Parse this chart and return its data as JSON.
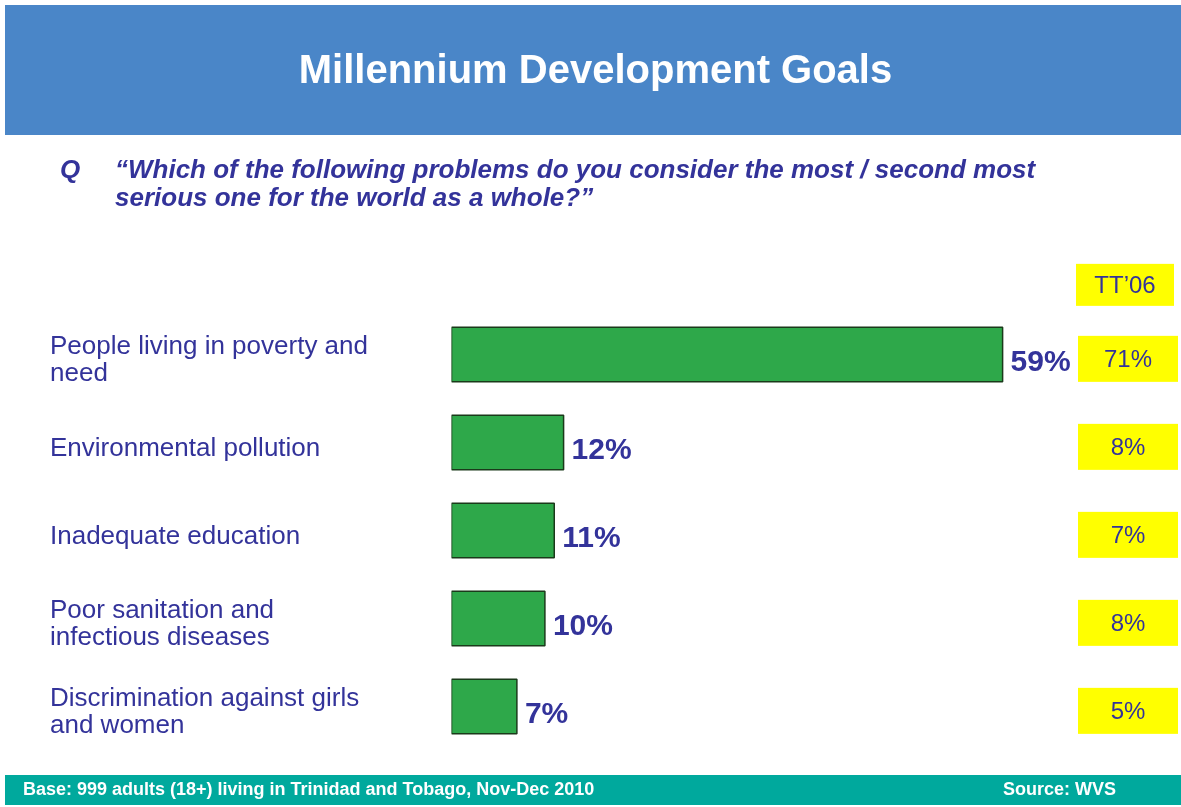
{
  "chart_data": {
    "type": "bar",
    "orientation": "horizontal",
    "title": "Millennium Development Goals",
    "subtitle": "“Which of the following problems do you consider the most / second most serious one for the world as a whole?”",
    "categories": [
      "People living in poverty and need",
      "Environmental pollution",
      "Inadequate education",
      "Poor sanitation and infectious diseases",
      "Discrimination against girls and women"
    ],
    "values": [
      59,
      12,
      11,
      10,
      7
    ],
    "value_labels": [
      "59%",
      "12%",
      "11%",
      "10%",
      "7%"
    ],
    "color": "#2ea84a",
    "grid": false,
    "annotations": [
      "Q",
      "TT’06",
      "71%",
      "8%",
      "7%",
      "8%",
      "5%",
      "Base: 999 adults (18+) living in Trinidad and Tobago, Nov-Dec 2010",
      "Source: WVS"
    ]
  }
}
